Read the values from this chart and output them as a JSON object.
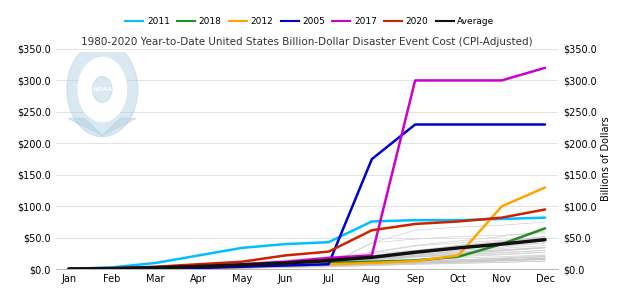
{
  "title": "1980-2020 Year-to-Date United States Billion-Dollar Disaster Event Cost (CPI-Adjusted)",
  "ylabel_right": "Billions of Dollars",
  "months": [
    "Jan",
    "Feb",
    "Mar",
    "Apr",
    "May",
    "Jun",
    "Jul",
    "Aug",
    "Sep",
    "Oct",
    "Nov",
    "Dec"
  ],
  "ylim": [
    0,
    350
  ],
  "yticks": [
    0,
    50,
    100,
    150,
    200,
    250,
    300,
    350
  ],
  "ytick_labels": [
    "$0.0",
    "$50.0",
    "$100.0",
    "$150.0",
    "$200.0",
    "$250.0",
    "$300.0",
    "$350.0"
  ],
  "highlighted": [
    {
      "label": "2011",
      "color": "#00BFFF",
      "lw": 1.8,
      "values": [
        0.5,
        3,
        10,
        22,
        34,
        40,
        43,
        76,
        78,
        78,
        80,
        82
      ]
    },
    {
      "label": "2018",
      "color": "#228B22",
      "lw": 1.8,
      "values": [
        0.3,
        0.8,
        2,
        4,
        6,
        8,
        10,
        12,
        14,
        20,
        40,
        65
      ]
    },
    {
      "label": "2012",
      "color": "#FFA500",
      "lw": 1.8,
      "values": [
        0.2,
        0.5,
        1,
        2,
        4,
        6,
        8,
        10,
        13,
        22,
        100,
        130
      ]
    },
    {
      "label": "2005",
      "color": "#0000CD",
      "lw": 1.8,
      "values": [
        0.2,
        0.5,
        1,
        2,
        4,
        6,
        8,
        175,
        230,
        230,
        230,
        230
      ]
    },
    {
      "label": "2017",
      "color": "#CC00CC",
      "lw": 1.8,
      "values": [
        0.3,
        0.8,
        2,
        4,
        8,
        12,
        18,
        22,
        300,
        300,
        300,
        320
      ]
    },
    {
      "label": "2020",
      "color": "#CC2200",
      "lw": 1.8,
      "values": [
        0.5,
        1.5,
        4,
        8,
        12,
        22,
        28,
        62,
        72,
        76,
        82,
        95
      ]
    },
    {
      "label": "Average",
      "color": "#111111",
      "lw": 2.5,
      "values": [
        0.5,
        1.2,
        2.5,
        4.5,
        7,
        10,
        14,
        19,
        27,
        34,
        40,
        47
      ]
    }
  ],
  "background_lines_color": "#C8C8C8",
  "background_years": {
    "1980": [
      0.3,
      0.8,
      2,
      4,
      6,
      9,
      12,
      15,
      19,
      23,
      26,
      30
    ],
    "1981": [
      0.1,
      0.3,
      0.8,
      1.5,
      3,
      5,
      7,
      9,
      11,
      13,
      15,
      17
    ],
    "1982": [
      0.1,
      0.2,
      0.5,
      1,
      2,
      3,
      4,
      6,
      8,
      10,
      11,
      13
    ],
    "1983": [
      0.2,
      0.5,
      1.5,
      4,
      7,
      11,
      16,
      20,
      24,
      28,
      31,
      35
    ],
    "1984": [
      0.1,
      0.2,
      0.5,
      1,
      2,
      4,
      6,
      8,
      10,
      12,
      14,
      16
    ],
    "1985": [
      0.1,
      0.3,
      1,
      2,
      4,
      6,
      8,
      14,
      22,
      30,
      33,
      38
    ],
    "1986": [
      0.1,
      0.2,
      0.4,
      1,
      2,
      3,
      5,
      7,
      9,
      11,
      13,
      15
    ],
    "1987": [
      0.1,
      0.2,
      0.4,
      1,
      2,
      3,
      4,
      6,
      8,
      9,
      11,
      13
    ],
    "1988": [
      0.1,
      0.3,
      0.8,
      2,
      4,
      8,
      12,
      16,
      20,
      24,
      27,
      30
    ],
    "1989": [
      0.1,
      0.2,
      0.5,
      1,
      3,
      5,
      8,
      12,
      20,
      30,
      35,
      42
    ],
    "1990": [
      0.1,
      0.2,
      0.5,
      1,
      2,
      4,
      6,
      8,
      10,
      12,
      14,
      17
    ],
    "1991": [
      0.1,
      0.2,
      0.5,
      1,
      3,
      5,
      7,
      10,
      13,
      15,
      17,
      20
    ],
    "1992": [
      0.1,
      0.2,
      0.5,
      1,
      3,
      5,
      7,
      42,
      48,
      52,
      54,
      58
    ],
    "1993": [
      0.1,
      0.4,
      1.5,
      4,
      9,
      15,
      20,
      25,
      30,
      34,
      37,
      42
    ],
    "1994": [
      0.2,
      2,
      5,
      8,
      10,
      12,
      14,
      17,
      20,
      22,
      24,
      27
    ],
    "1995": [
      0.1,
      0.3,
      1,
      3,
      5,
      8,
      12,
      17,
      22,
      26,
      30,
      34
    ],
    "1996": [
      0.1,
      0.2,
      0.5,
      2,
      4,
      7,
      11,
      16,
      22,
      27,
      30,
      35
    ],
    "1997": [
      0.1,
      0.2,
      0.5,
      2,
      4,
      6,
      8,
      10,
      13,
      15,
      17,
      20
    ],
    "1998": [
      0.1,
      0.3,
      1,
      3,
      6,
      10,
      17,
      27,
      38,
      45,
      52,
      60
    ],
    "1999": [
      0.1,
      0.3,
      1,
      2,
      4,
      7,
      10,
      16,
      24,
      35,
      43,
      50
    ],
    "2000": [
      0.1,
      0.2,
      0.5,
      1,
      3,
      5,
      7,
      9,
      11,
      13,
      15,
      17
    ],
    "2001": [
      0.1,
      0.2,
      0.5,
      1,
      2,
      4,
      6,
      8,
      10,
      12,
      14,
      16
    ],
    "2002": [
      0.1,
      0.2,
      0.5,
      1,
      2,
      4,
      6,
      8,
      10,
      13,
      15,
      17
    ],
    "2003": [
      0.1,
      0.2,
      0.5,
      2,
      4,
      6,
      9,
      12,
      16,
      20,
      23,
      27
    ],
    "2004": [
      0.1,
      0.2,
      0.5,
      1,
      3,
      5,
      8,
      42,
      62,
      67,
      70,
      75
    ],
    "2006": [
      0.1,
      0.2,
      0.5,
      1,
      2,
      4,
      6,
      8,
      10,
      13,
      15,
      17
    ],
    "2007": [
      0.1,
      0.2,
      0.5,
      1,
      2,
      4,
      6,
      8,
      10,
      12,
      14,
      18
    ],
    "2008": [
      0.1,
      0.2,
      0.5,
      2,
      4,
      6,
      10,
      15,
      28,
      38,
      44,
      52
    ],
    "2009": [
      0.1,
      0.2,
      0.5,
      1,
      2,
      4,
      6,
      8,
      10,
      12,
      14,
      16
    ],
    "2010": [
      0.1,
      0.2,
      0.5,
      1,
      2,
      4,
      6,
      9,
      12,
      15,
      18,
      22
    ],
    "2013": [
      0.1,
      0.2,
      0.5,
      1,
      2,
      4,
      6,
      9,
      12,
      15,
      17,
      20
    ],
    "2014": [
      0.1,
      0.3,
      1,
      3,
      5,
      7,
      9,
      12,
      15,
      18,
      20,
      23
    ],
    "2015": [
      0.1,
      0.3,
      1,
      3,
      5,
      8,
      12,
      16,
      20,
      25,
      29,
      34
    ],
    "2016": [
      0.1,
      0.2,
      0.5,
      1,
      3,
      5,
      8,
      26,
      37,
      42,
      46,
      50
    ],
    "2019": [
      0.1,
      0.3,
      1,
      3,
      6,
      10,
      15,
      22,
      30,
      38,
      44,
      52
    ]
  },
  "background_color": "#ffffff",
  "plot_bg_color": "#ffffff",
  "noaa_logo_color": "#afd0e0"
}
